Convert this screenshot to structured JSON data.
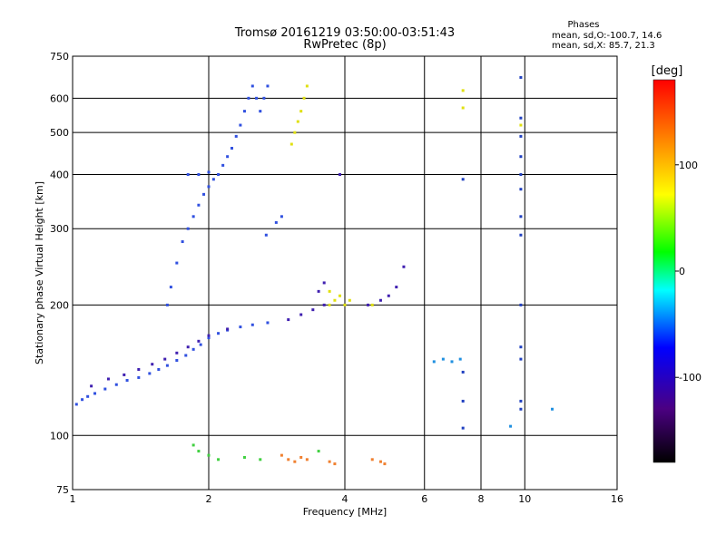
{
  "chart_data": {
    "type": "scatter",
    "title": "Tromsø 20161219 03:50:00-03:51:43",
    "subtitle": "RwPretec (8p)",
    "xlabel": "Frequency [MHz]",
    "ylabel": "Stationary phase Virtual Height [km]",
    "x_scale": "log",
    "y_scale": "log",
    "xlim": [
      1,
      16
    ],
    "ylim": [
      75,
      750
    ],
    "x_ticks": [
      "1",
      "2",
      "4",
      "6",
      "8",
      "10",
      "16"
    ],
    "y_ticks": [
      "75",
      "100",
      "200",
      "300",
      "400",
      "500",
      "600",
      "750"
    ],
    "grid": true,
    "legend": {
      "title": "Phases",
      "lines": [
        "mean, sd,O:-100.7, 14.6",
        "mean, sd,X:  85.7, 21.3"
      ],
      "placement": "top-right"
    },
    "colorbar": {
      "label": "[deg]",
      "range": [
        -180,
        180
      ],
      "ticks": [
        "100",
        "0",
        "-100"
      ],
      "colormap": [
        "#000000",
        "#4b0082",
        "#0000ff",
        "#00ffff",
        "#00ff00",
        "#ffff00",
        "#ff8000",
        "#ff0000"
      ]
    },
    "series": [
      {
        "color": "#3050e0",
        "points": [
          [
            1.02,
            118
          ],
          [
            1.05,
            121
          ],
          [
            1.08,
            123
          ],
          [
            1.12,
            125
          ],
          [
            1.18,
            128
          ],
          [
            1.25,
            131
          ],
          [
            1.32,
            134
          ],
          [
            1.4,
            136
          ],
          [
            1.48,
            139
          ],
          [
            1.55,
            142
          ],
          [
            1.62,
            145
          ],
          [
            1.7,
            149
          ],
          [
            1.78,
            153
          ],
          [
            1.85,
            158
          ],
          [
            1.92,
            162
          ],
          [
            2.0,
            168
          ],
          [
            2.1,
            172
          ],
          [
            2.2,
            175
          ],
          [
            2.35,
            178
          ],
          [
            2.5,
            180
          ],
          [
            2.7,
            182
          ],
          [
            1.62,
            200
          ],
          [
            1.65,
            220
          ],
          [
            1.7,
            250
          ],
          [
            1.75,
            280
          ],
          [
            1.8,
            300
          ],
          [
            1.85,
            320
          ],
          [
            1.9,
            340
          ],
          [
            1.95,
            360
          ],
          [
            2.0,
            375
          ],
          [
            2.05,
            390
          ],
          [
            2.1,
            400
          ],
          [
            2.15,
            420
          ],
          [
            2.2,
            440
          ],
          [
            2.25,
            460
          ],
          [
            2.3,
            490
          ],
          [
            2.35,
            520
          ],
          [
            2.4,
            560
          ],
          [
            2.45,
            600
          ],
          [
            2.5,
            640
          ],
          [
            2.55,
            600
          ],
          [
            2.6,
            560
          ],
          [
            2.65,
            600
          ],
          [
            2.7,
            640
          ],
          [
            2.68,
            290
          ],
          [
            2.82,
            310
          ],
          [
            2.9,
            320
          ],
          [
            1.8,
            400
          ],
          [
            1.9,
            400
          ],
          [
            2.0,
            405
          ]
        ]
      },
      {
        "color": "#4020b0",
        "points": [
          [
            1.1,
            130
          ],
          [
            1.2,
            135
          ],
          [
            1.3,
            138
          ],
          [
            1.4,
            142
          ],
          [
            1.5,
            146
          ],
          [
            1.6,
            150
          ],
          [
            1.7,
            155
          ],
          [
            1.8,
            160
          ],
          [
            1.9,
            165
          ],
          [
            2.0,
            170
          ],
          [
            2.2,
            176
          ],
          [
            3.0,
            185
          ],
          [
            3.2,
            190
          ],
          [
            3.4,
            195
          ],
          [
            3.6,
            200
          ],
          [
            3.5,
            215
          ],
          [
            3.6,
            225
          ],
          [
            4.5,
            200
          ],
          [
            4.8,
            205
          ],
          [
            5.0,
            210
          ],
          [
            5.2,
            220
          ],
          [
            5.4,
            245
          ],
          [
            3.9,
            400
          ]
        ]
      },
      {
        "color": "#e0e010",
        "points": [
          [
            3.05,
            470
          ],
          [
            3.1,
            500
          ],
          [
            3.15,
            530
          ],
          [
            3.2,
            560
          ],
          [
            3.25,
            600
          ],
          [
            3.3,
            640
          ],
          [
            3.7,
            200
          ],
          [
            3.8,
            205
          ],
          [
            3.9,
            210
          ],
          [
            4.0,
            200
          ],
          [
            4.1,
            205
          ],
          [
            3.7,
            215
          ],
          [
            4.6,
            200
          ],
          [
            7.3,
            625
          ],
          [
            7.3,
            570
          ],
          [
            9.8,
            520
          ]
        ]
      },
      {
        "color": "#2090e0",
        "points": [
          [
            6.3,
            148
          ],
          [
            6.6,
            150
          ],
          [
            6.9,
            148
          ],
          [
            7.2,
            150
          ],
          [
            9.3,
            105
          ],
          [
            11.5,
            115
          ]
        ]
      },
      {
        "color": "#f08030",
        "points": [
          [
            2.9,
            90
          ],
          [
            3.0,
            88
          ],
          [
            3.1,
            87
          ],
          [
            3.2,
            89
          ],
          [
            3.3,
            88
          ],
          [
            3.7,
            87
          ],
          [
            3.8,
            86
          ],
          [
            4.6,
            88
          ],
          [
            4.8,
            87
          ],
          [
            4.9,
            86
          ]
        ]
      },
      {
        "color": "#40d040",
        "points": [
          [
            1.85,
            95
          ],
          [
            1.9,
            92
          ],
          [
            2.0,
            90
          ],
          [
            2.1,
            88
          ],
          [
            2.4,
            89
          ],
          [
            2.6,
            88
          ],
          [
            3.5,
            92
          ]
        ]
      },
      {
        "color": "#2040c0",
        "points": [
          [
            7.3,
            140
          ],
          [
            7.3,
            120
          ],
          [
            7.3,
            104
          ],
          [
            7.3,
            390
          ],
          [
            9.8,
            670
          ],
          [
            9.8,
            540
          ],
          [
            9.8,
            490
          ],
          [
            9.8,
            440
          ],
          [
            9.8,
            400
          ],
          [
            9.8,
            370
          ],
          [
            9.8,
            320
          ],
          [
            9.8,
            290
          ],
          [
            9.8,
            200
          ],
          [
            9.8,
            160
          ],
          [
            9.8,
            150
          ],
          [
            9.8,
            120
          ],
          [
            9.8,
            115
          ]
        ]
      }
    ]
  }
}
